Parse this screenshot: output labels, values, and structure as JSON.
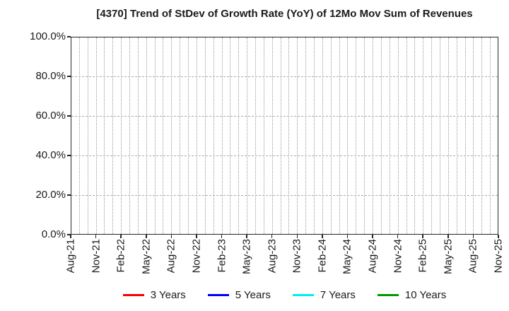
{
  "colors": {
    "background": "#ffffff",
    "border": "#262626",
    "grid_vertical": "#9a9a9a",
    "grid_horizontal": "#ababab",
    "text": "#1a1a1a"
  },
  "chart_data": {
    "type": "line",
    "title": "[4370]  Trend of StDev of Growth Rate (YoY) of 12Mo Mov Sum of Revenues",
    "xlabel": "",
    "ylabel": "",
    "ylim": [
      0,
      100
    ],
    "y_tick_values": [
      100,
      80,
      60,
      40,
      20,
      0
    ],
    "y_tick_labels": [
      "100.0%",
      "80.0%",
      "60.0%",
      "40.0%",
      "20.0%",
      "0.0%"
    ],
    "x_tick_labels": [
      "Aug-21",
      "Nov-21",
      "Feb-22",
      "May-22",
      "Aug-22",
      "Nov-22",
      "Feb-23",
      "May-23",
      "Aug-23",
      "Nov-23",
      "Feb-24",
      "May-24",
      "Aug-24",
      "Nov-24",
      "Feb-25",
      "May-25",
      "Aug-25",
      "Nov-25"
    ],
    "x_minor_divisions_per_tick": 3,
    "x_total_minor_intervals": 51,
    "grid": {
      "vertical": "dotted, monthly",
      "horizontal": "dashed, every 20%"
    },
    "legend_position": "bottom-center",
    "series": [
      {
        "name": "3 Years",
        "color": "#ff0000",
        "values": []
      },
      {
        "name": "5 Years",
        "color": "#0000ff",
        "values": []
      },
      {
        "name": "7 Years",
        "color": "#00eeee",
        "values": []
      },
      {
        "name": "10 Years",
        "color": "#009900",
        "values": []
      }
    ],
    "plot_note": "no data lines visible; empty gridded plot area"
  }
}
